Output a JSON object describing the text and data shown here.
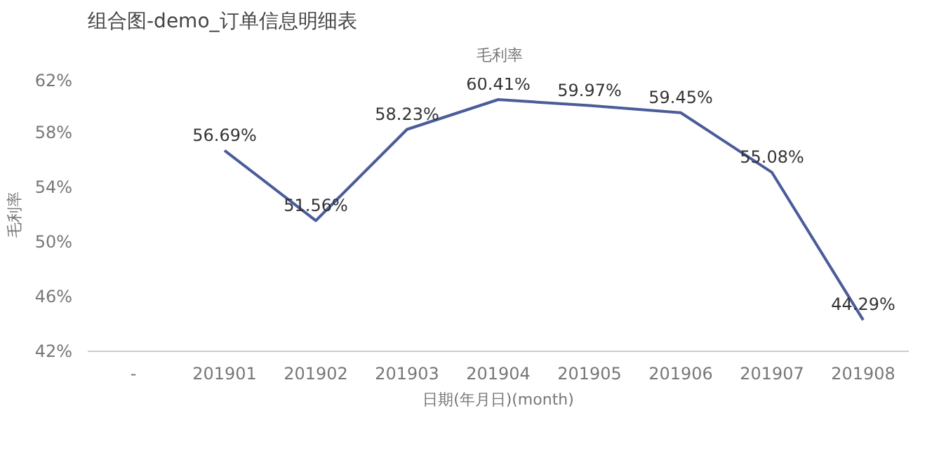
{
  "chart_data": {
    "type": "line",
    "title": "组合图-demo_订单信息明细表",
    "xlabel": "日期(年月日)(month)",
    "ylabel": "毛利率",
    "categories": [
      "-",
      "201901",
      "201902",
      "201903",
      "201904",
      "201905",
      "201906",
      "201907",
      "201908"
    ],
    "series": [
      {
        "name": "毛利率",
        "color": "#4a5c9a",
        "values": [
          null,
          56.69,
          51.56,
          58.23,
          60.41,
          59.97,
          59.45,
          55.08,
          44.29
        ],
        "value_labels": [
          null,
          "56.69%",
          "51.56%",
          "58.23%",
          "60.41%",
          "59.97%",
          "59.45%",
          "55.08%",
          "44.29%"
        ]
      }
    ],
    "ylim": [
      42,
      62
    ],
    "yticks": [
      {
        "value": 42,
        "label": "42%"
      },
      {
        "value": 46,
        "label": "46%"
      },
      {
        "value": 50,
        "label": "50%"
      },
      {
        "value": 54,
        "label": "54%"
      },
      {
        "value": 58,
        "label": "58%"
      },
      {
        "value": 62,
        "label": "62%"
      }
    ],
    "grid": false,
    "legend": "top",
    "marker": "none",
    "line_style": "solid"
  }
}
